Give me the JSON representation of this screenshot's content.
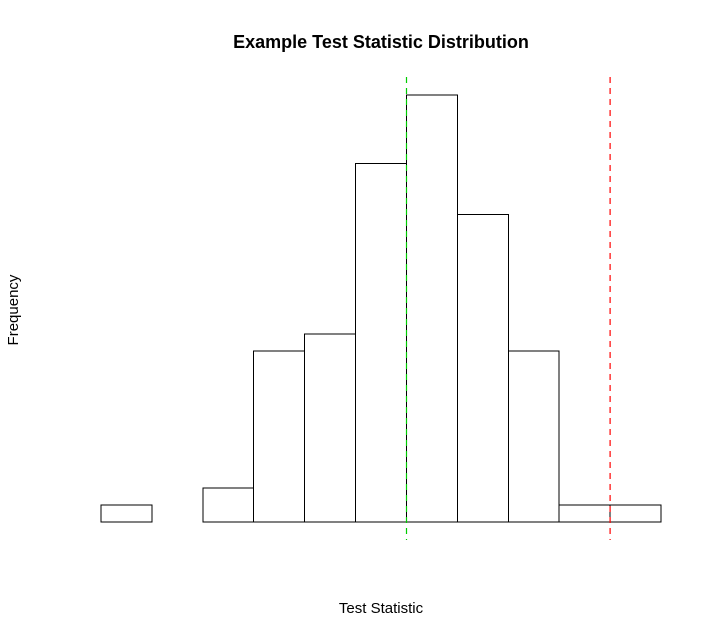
{
  "chart_data": {
    "type": "histogram",
    "title": "Example Test Statistic Distribution",
    "xlabel": "Test Statistic",
    "ylabel": "Frequency",
    "axes_shown": false,
    "grid": false,
    "bin_edges": [
      0,
      1,
      2,
      3,
      4,
      5,
      6,
      7,
      8,
      9,
      10,
      11
    ],
    "counts": [
      1,
      0,
      2,
      10,
      11,
      21,
      25,
      18,
      10,
      1,
      1
    ],
    "ylim": [
      0,
      25
    ],
    "reference_lines": [
      {
        "x": 6,
        "color": "#00cc00",
        "style": "dashed"
      },
      {
        "x": 10,
        "color": "#ff0000",
        "style": "dashed"
      }
    ]
  }
}
